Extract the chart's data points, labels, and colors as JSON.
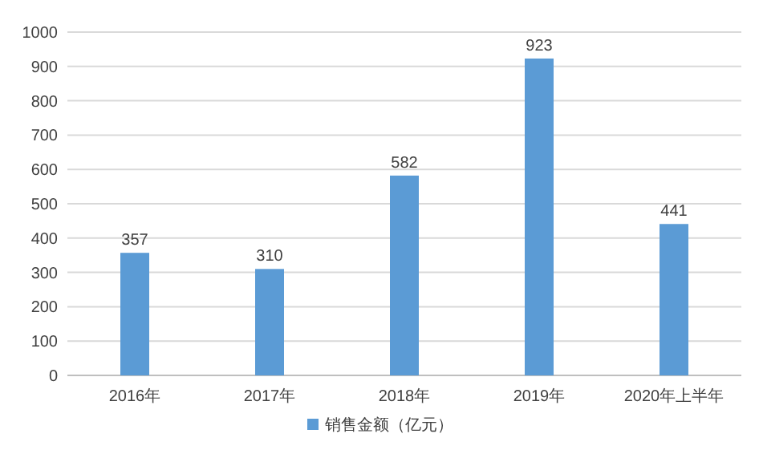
{
  "chart_data": {
    "type": "bar",
    "categories": [
      "2016年",
      "2017年",
      "2018年",
      "2019年",
      "2020年上半年"
    ],
    "series": [
      {
        "name": "销售金额（亿元）",
        "color": "#5b9bd5",
        "values": [
          357,
          310,
          582,
          923,
          441
        ]
      }
    ],
    "ylim": [
      0,
      1000
    ],
    "yticks": [
      0,
      100,
      200,
      300,
      400,
      500,
      600,
      700,
      800,
      900,
      1000
    ],
    "grid": "y",
    "legend": "bottom",
    "data_labels": true
  }
}
